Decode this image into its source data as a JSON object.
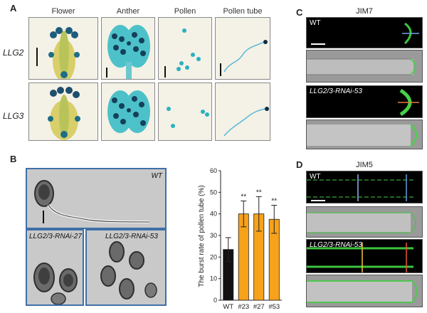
{
  "panels": {
    "A": {
      "label": "A",
      "col_headers": [
        "Flower",
        "Anther",
        "Pollen",
        "Pollen tube"
      ],
      "row_labels": [
        "LLG2",
        "LLG3"
      ]
    },
    "B": {
      "label": "B",
      "images": [
        "WT",
        "LLG2/3-RNAi-27",
        "LLG2/3-RNAi-53"
      ]
    },
    "C": {
      "label": "C",
      "title": "JIM7",
      "wt_label": "WT",
      "mut_label": "LLG2/3-RNAi-53"
    },
    "D": {
      "label": "D",
      "title": "JIM5",
      "wt_label": "WT",
      "mut_label": "LLG2/3-RNAi-53"
    }
  },
  "chart_data": {
    "type": "bar",
    "ylabel": "The burst rate of pollen tube (%)",
    "categories": [
      "WT",
      "#23",
      "#27",
      "#53"
    ],
    "values": [
      23.5,
      40,
      40,
      37.5
    ],
    "errors": [
      5.5,
      6,
      8,
      6.5
    ],
    "significance": [
      "",
      "**",
      "**",
      "**"
    ],
    "ylim": [
      0,
      60
    ],
    "yticks": [
      0,
      10,
      20,
      30,
      40,
      50,
      60
    ],
    "colors": [
      "#111111",
      "#f7a21b",
      "#f7a21b",
      "#f7a21b"
    ]
  }
}
